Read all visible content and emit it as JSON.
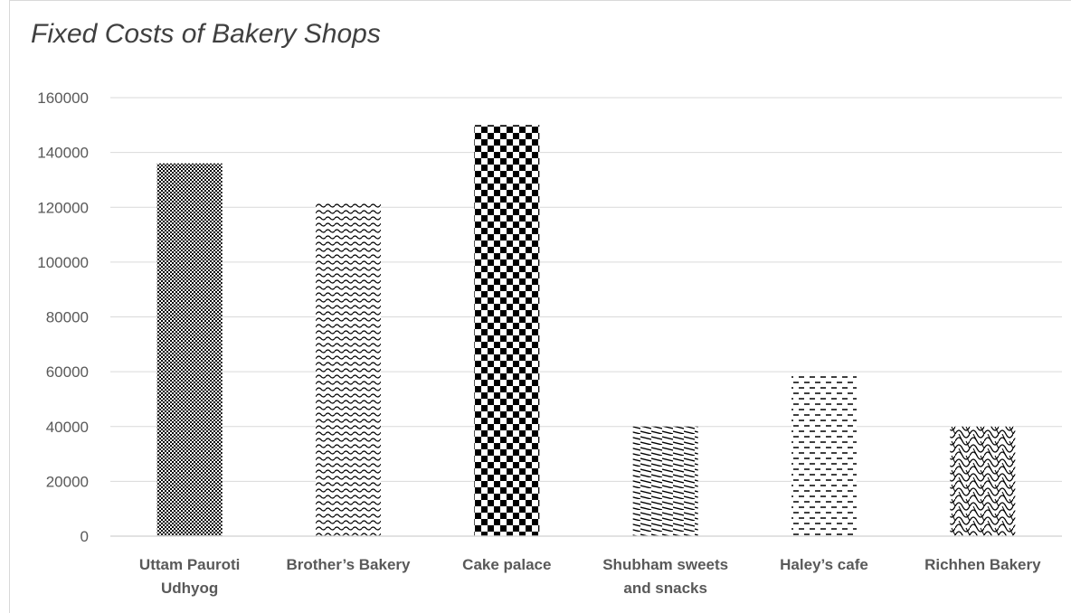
{
  "chart_data": {
    "type": "bar",
    "title": "Fixed Costs of Bakery Shops",
    "xlabel": "",
    "ylabel": "",
    "categories": [
      "Uttam Pauroti Udhyog",
      "Brother’s Bakery",
      "Cake palace",
      "Shubham sweets and snacks",
      "Haley’s cafe",
      "Richhen Bakery"
    ],
    "category_lines": [
      [
        "Uttam Pauroti",
        "Udhyog"
      ],
      [
        "Brother’s Bakery"
      ],
      [
        "Cake palace"
      ],
      [
        "Shubham sweets",
        "and snacks"
      ],
      [
        "Haley’s cafe"
      ],
      [
        "Richhen Bakery"
      ]
    ],
    "values": [
      136000,
      122000,
      150000,
      40000,
      59500,
      40000
    ],
    "patterns": [
      "dense-dots",
      "waves",
      "checkerboard",
      "diagonal-dashes",
      "horizontal-dashes",
      "weave"
    ],
    "ylim": [
      0,
      160000
    ],
    "yticks": [
      "0",
      "20000",
      "40000",
      "60000",
      "80000",
      "100000",
      "120000",
      "140000",
      "160000"
    ],
    "grid": true,
    "legend": "none",
    "colors": {
      "bar": "#000000",
      "grid": "#d9d9d9",
      "text": "#595959",
      "title": "#404040"
    }
  }
}
